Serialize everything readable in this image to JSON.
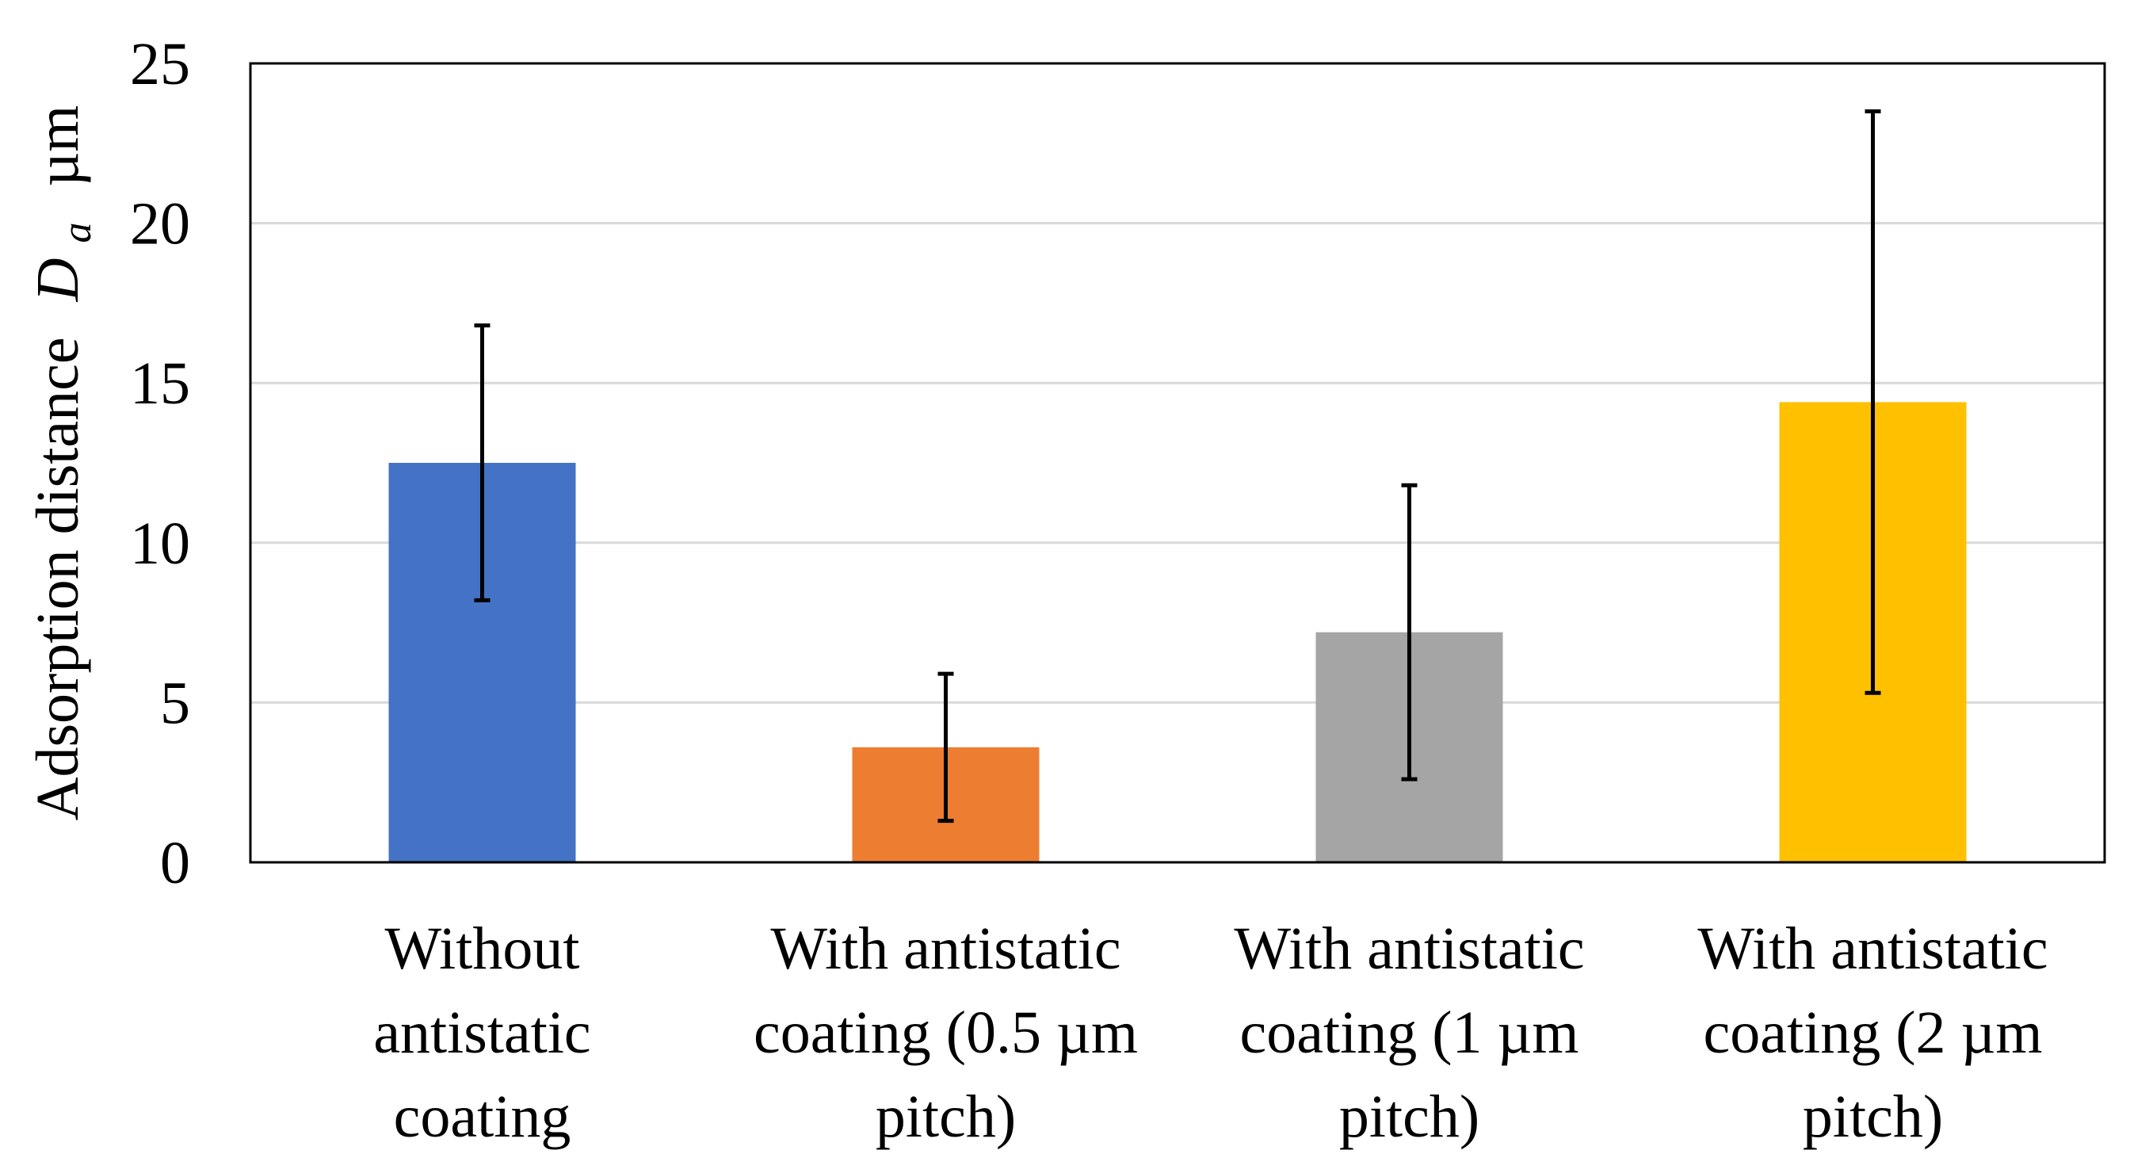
{
  "chart_data": {
    "type": "bar",
    "title": "",
    "xlabel": "",
    "ylabel": {
      "prefix": "Adsorption distance",
      "symbol": "D",
      "subscript": "a",
      "unit": "µm"
    },
    "ylim": [
      0,
      25
    ],
    "yticks": [
      "0",
      "5",
      "10",
      "15",
      "20",
      "25"
    ],
    "grid": true,
    "categories": [
      [
        "Without",
        "antistatic",
        "coating"
      ],
      [
        "With antistatic",
        "coating (0.5 µm",
        "pitch)"
      ],
      [
        "With antistatic",
        "coating (1 µm",
        "pitch)"
      ],
      [
        "With antistatic",
        "coating (2 µm",
        "pitch)"
      ]
    ],
    "values": [
      12.5,
      3.6,
      7.2,
      14.4
    ],
    "error_low": [
      8.2,
      1.3,
      2.6,
      5.3
    ],
    "error_high": [
      16.8,
      5.9,
      11.8,
      23.5
    ],
    "colors": [
      "#4472C4",
      "#ED7D31",
      "#A5A5A5",
      "#FFC000"
    ]
  }
}
